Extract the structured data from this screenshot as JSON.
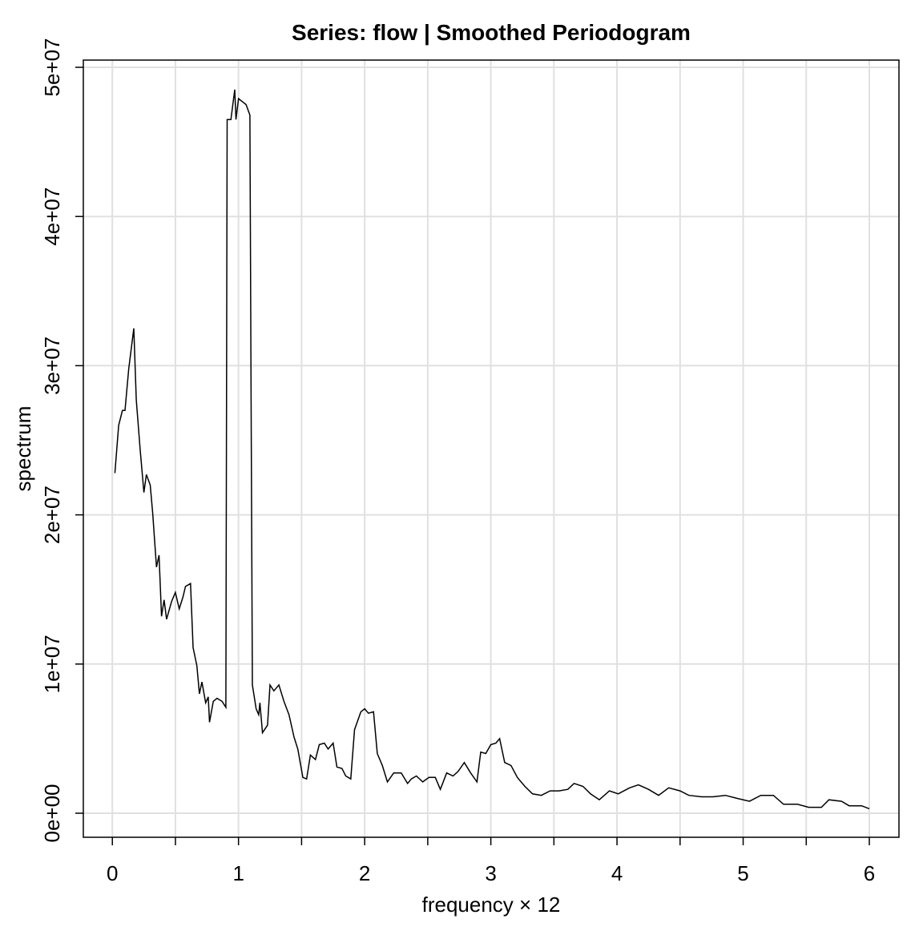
{
  "chart_data": {
    "type": "line",
    "title": "Series: flow  |  Smoothed Periodogram",
    "xlabel": "frequency × 12",
    "ylabel": "spectrum",
    "color": "#000000",
    "grid": true,
    "xlim": [
      -0.23,
      6.235
    ],
    "ylim": [
      -1611000,
      50483000
    ],
    "xticks": [
      0,
      1,
      2,
      3,
      4,
      5,
      6
    ],
    "xminor_ticks": [
      0.5,
      1.5,
      2.5,
      3.5,
      4.5,
      5.5
    ],
    "yticks": [
      {
        "value": 0,
        "label": "0e+00"
      },
      {
        "value": 10000000,
        "label": "1e+07"
      },
      {
        "value": 20000000,
        "label": "2e+07"
      },
      {
        "value": 30000000,
        "label": "3e+07"
      },
      {
        "value": 40000000,
        "label": "4e+07"
      },
      {
        "value": 50000000,
        "label": "5e+07"
      }
    ],
    "x": [
      0.02,
      0.05,
      0.08,
      0.1,
      0.13,
      0.17,
      0.19,
      0.22,
      0.25,
      0.27,
      0.3,
      0.32,
      0.35,
      0.37,
      0.39,
      0.41,
      0.43,
      0.47,
      0.5,
      0.53,
      0.56,
      0.58,
      0.62,
      0.64,
      0.67,
      0.69,
      0.71,
      0.74,
      0.76,
      0.77,
      0.8,
      0.83,
      0.87,
      0.9,
      0.91,
      0.94,
      0.97,
      0.98,
      1.0,
      1.03,
      1.06,
      1.09,
      1.1,
      1.11,
      1.14,
      1.16,
      1.17,
      1.19,
      1.23,
      1.25,
      1.28,
      1.32,
      1.36,
      1.4,
      1.44,
      1.47,
      1.51,
      1.54,
      1.57,
      1.61,
      1.64,
      1.68,
      1.71,
      1.75,
      1.78,
      1.82,
      1.85,
      1.89,
      1.92,
      1.97,
      2.0,
      2.03,
      2.07,
      2.1,
      2.14,
      2.18,
      2.23,
      2.29,
      2.34,
      2.37,
      2.41,
      2.46,
      2.51,
      2.56,
      2.6,
      2.65,
      2.7,
      2.74,
      2.79,
      2.84,
      2.89,
      2.92,
      2.96,
      3.0,
      3.04,
      3.07,
      3.11,
      3.16,
      3.21,
      3.27,
      3.33,
      3.4,
      3.47,
      3.54,
      3.61,
      3.66,
      3.73,
      3.79,
      3.86,
      3.94,
      4.01,
      4.1,
      4.17,
      4.25,
      4.33,
      4.41,
      4.5,
      4.57,
      4.67,
      4.76,
      4.86,
      4.95,
      5.05,
      5.14,
      5.24,
      5.32,
      5.43,
      5.52,
      5.62,
      5.68,
      5.78,
      5.84,
      5.94,
      6.0
    ],
    "values": [
      22800000,
      26000000,
      27000000,
      27000000,
      29800000,
      32500000,
      27700000,
      24400000,
      21500000,
      22700000,
      22000000,
      20100000,
      16500000,
      17300000,
      13200000,
      14300000,
      13000000,
      14200000,
      14800000,
      13700000,
      14500000,
      15200000,
      15400000,
      11100000,
      9900000,
      8000000,
      8800000,
      7400000,
      7800000,
      6100000,
      7500000,
      7700000,
      7500000,
      7100000,
      46500000,
      46500000,
      48500000,
      46500000,
      47900000,
      47700000,
      47500000,
      46800000,
      27700000,
      8600000,
      7000000,
      6600000,
      7400000,
      5400000,
      5900000,
      8600000,
      8200000,
      8600000,
      7500000,
      6600000,
      5100000,
      4300000,
      2400000,
      2300000,
      3900000,
      3600000,
      4600000,
      4700000,
      4300000,
      4700000,
      3100000,
      3000000,
      2500000,
      2300000,
      5600000,
      6800000,
      7000000,
      6700000,
      6800000,
      4000000,
      3200000,
      2100000,
      2700000,
      2700000,
      2000000,
      2300000,
      2500000,
      2100000,
      2400000,
      2400000,
      1600000,
      2700000,
      2500000,
      2800000,
      3400000,
      2700000,
      2100000,
      4100000,
      4000000,
      4600000,
      4700000,
      5000000,
      3400000,
      3200000,
      2400000,
      1800000,
      1300000,
      1200000,
      1500000,
      1500000,
      1600000,
      2000000,
      1800000,
      1300000,
      900000,
      1500000,
      1300000,
      1700000,
      1900000,
      1600000,
      1200000,
      1700000,
      1500000,
      1200000,
      1100000,
      1100000,
      1200000,
      1000000,
      800000,
      1200000,
      1200000,
      600000,
      600000,
      400000,
      400000,
      900000,
      800000,
      500000,
      500000,
      300000
    ]
  }
}
